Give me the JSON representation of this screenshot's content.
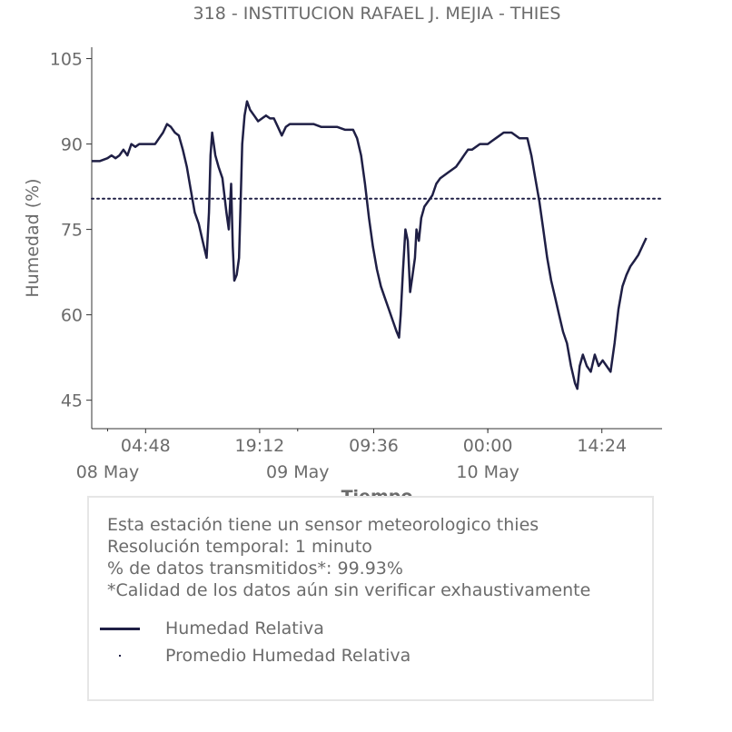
{
  "chart_data": {
    "type": "line",
    "title": "318 - INSTITUCION RAFAEL J. MEJIA - THIES",
    "xlabel": "Tiempo",
    "ylabel": "Humedad (%)",
    "ylim": [
      40,
      107
    ],
    "yticks": [
      105,
      90,
      75,
      60,
      45
    ],
    "x_ticks": [
      {
        "h": 4.8,
        "label": "04:48"
      },
      {
        "h": 19.2,
        "label": "19:12"
      },
      {
        "h": 33.6,
        "label": "09:36"
      },
      {
        "h": 48.0,
        "label": "00:00"
      },
      {
        "h": 62.4,
        "label": "14:24"
      }
    ],
    "date_ticks": [
      {
        "h": 0,
        "label": "08 May"
      },
      {
        "h": 24,
        "label": "09 May"
      },
      {
        "h": 48,
        "label": "10 May"
      }
    ],
    "xlim_hours": [
      -2.0,
      70.0
    ],
    "series": [
      {
        "name": "Humedad Relativa",
        "color": "#1f1f45",
        "points": [
          [
            -2.0,
            87
          ],
          [
            -1.0,
            87
          ],
          [
            0.0,
            87.5
          ],
          [
            0.5,
            88
          ],
          [
            1.0,
            87.5
          ],
          [
            1.5,
            88
          ],
          [
            2.0,
            89
          ],
          [
            2.5,
            88
          ],
          [
            3.0,
            90
          ],
          [
            3.5,
            89.5
          ],
          [
            4.0,
            90
          ],
          [
            5.0,
            90
          ],
          [
            6.0,
            90
          ],
          [
            6.5,
            91
          ],
          [
            7.0,
            92
          ],
          [
            7.5,
            93.5
          ],
          [
            8.0,
            93
          ],
          [
            8.5,
            92
          ],
          [
            9.0,
            91.5
          ],
          [
            9.5,
            89
          ],
          [
            10.0,
            86
          ],
          [
            10.5,
            82
          ],
          [
            11.0,
            78
          ],
          [
            11.5,
            76
          ],
          [
            12.0,
            73
          ],
          [
            12.5,
            70
          ],
          [
            12.8,
            78
          ],
          [
            13.0,
            88
          ],
          [
            13.2,
            92
          ],
          [
            13.6,
            88
          ],
          [
            14.0,
            86
          ],
          [
            14.5,
            84
          ],
          [
            15.0,
            78
          ],
          [
            15.3,
            75
          ],
          [
            15.6,
            83
          ],
          [
            15.8,
            72
          ],
          [
            16.0,
            66
          ],
          [
            16.3,
            67
          ],
          [
            16.6,
            70
          ],
          [
            16.8,
            80
          ],
          [
            17.0,
            90
          ],
          [
            17.3,
            95
          ],
          [
            17.6,
            97.5
          ],
          [
            18.0,
            96
          ],
          [
            18.5,
            95
          ],
          [
            19.0,
            94
          ],
          [
            19.5,
            94.5
          ],
          [
            20.0,
            95
          ],
          [
            20.5,
            94.5
          ],
          [
            21.0,
            94.5
          ],
          [
            21.5,
            93
          ],
          [
            22.0,
            91.5
          ],
          [
            22.5,
            93
          ],
          [
            23.0,
            93.5
          ],
          [
            24.0,
            93.5
          ],
          [
            25.0,
            93.5
          ],
          [
            26.0,
            93.5
          ],
          [
            27.0,
            93
          ],
          [
            28.0,
            93
          ],
          [
            29.0,
            93
          ],
          [
            30.0,
            92.5
          ],
          [
            31.0,
            92.5
          ],
          [
            31.5,
            91
          ],
          [
            32.0,
            88
          ],
          [
            32.5,
            83
          ],
          [
            33.0,
            77
          ],
          [
            33.5,
            72
          ],
          [
            34.0,
            68
          ],
          [
            34.5,
            65
          ],
          [
            35.0,
            63
          ],
          [
            35.5,
            61
          ],
          [
            36.0,
            59
          ],
          [
            36.5,
            57
          ],
          [
            36.8,
            56
          ],
          [
            37.0,
            60
          ],
          [
            37.3,
            68
          ],
          [
            37.6,
            75
          ],
          [
            37.9,
            73
          ],
          [
            38.2,
            64
          ],
          [
            38.5,
            67
          ],
          [
            38.8,
            70
          ],
          [
            39.0,
            75
          ],
          [
            39.3,
            73
          ],
          [
            39.6,
            77
          ],
          [
            40.0,
            79
          ],
          [
            40.5,
            80
          ],
          [
            41.0,
            81
          ],
          [
            41.5,
            83
          ],
          [
            42.0,
            84
          ],
          [
            43.0,
            85
          ],
          [
            44.0,
            86
          ],
          [
            44.5,
            87
          ],
          [
            45.0,
            88
          ],
          [
            45.5,
            89
          ],
          [
            46.0,
            89
          ],
          [
            47.0,
            90
          ],
          [
            48.0,
            90
          ],
          [
            48.5,
            90.5
          ],
          [
            49.0,
            91
          ],
          [
            49.5,
            91.5
          ],
          [
            50.0,
            92
          ],
          [
            51.0,
            92
          ],
          [
            52.0,
            91
          ],
          [
            53.0,
            91
          ],
          [
            53.5,
            88
          ],
          [
            54.0,
            84
          ],
          [
            54.5,
            80
          ],
          [
            55.0,
            75
          ],
          [
            55.5,
            70
          ],
          [
            56.0,
            66
          ],
          [
            56.5,
            63
          ],
          [
            57.0,
            60
          ],
          [
            57.5,
            57
          ],
          [
            58.0,
            55
          ],
          [
            58.5,
            51
          ],
          [
            59.0,
            48
          ],
          [
            59.3,
            47
          ],
          [
            59.6,
            51
          ],
          [
            60.0,
            53
          ],
          [
            60.5,
            51
          ],
          [
            61.0,
            50
          ],
          [
            61.5,
            53
          ],
          [
            62.0,
            51
          ],
          [
            62.5,
            52
          ],
          [
            63.0,
            51
          ],
          [
            63.5,
            50
          ],
          [
            64.0,
            55
          ],
          [
            64.5,
            61
          ],
          [
            65.0,
            65
          ],
          [
            65.5,
            67
          ],
          [
            66.0,
            68.5
          ],
          [
            66.5,
            69.5
          ],
          [
            67.0,
            70.5
          ],
          [
            67.5,
            72
          ],
          [
            68.0,
            73.5
          ]
        ]
      }
    ],
    "mean_line": {
      "name": "Promedio Humedad Relativa",
      "value": 80.4,
      "style": "dotted",
      "color": "#1f1f45"
    },
    "grid": false,
    "legend_position": "bottom"
  },
  "info": {
    "lines": [
      "Esta estación tiene un sensor meteorologico thies",
      "Resolución temporal: 1 minuto",
      "% de datos transmitidos*: 99.93%",
      "*Calidad de los datos aún sin verificar exhaustivamente"
    ],
    "legend": {
      "humidity_label": "Humedad Relativa",
      "mean_label": "Promedio Humedad Relativa"
    }
  }
}
